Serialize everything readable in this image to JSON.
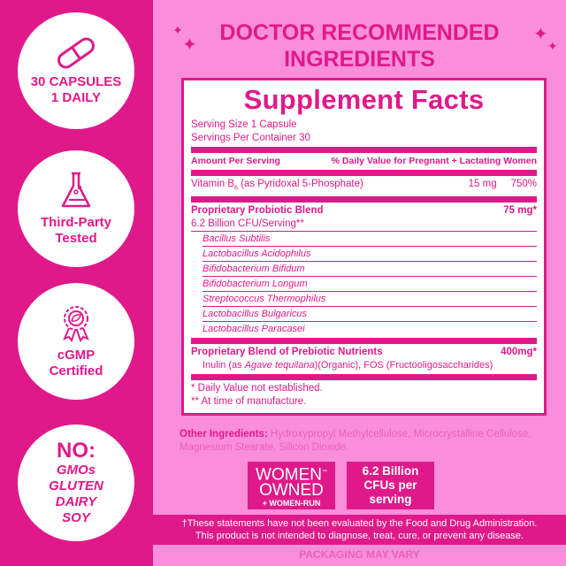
{
  "colors": {
    "primary": "#e0198a",
    "background": "#fb8edb"
  },
  "badges_left": [
    {
      "icon": "capsule-icon",
      "lines": [
        "30 CAPSULES",
        "1 DAILY"
      ]
    },
    {
      "icon": "flask-icon",
      "lines": [
        "Third-Party",
        "Tested"
      ]
    },
    {
      "icon": "award-leaf-icon",
      "lines": [
        "cGMP",
        "Certified"
      ]
    },
    {
      "title": "NO:",
      "lines": [
        "GMOs",
        "GLUTEN",
        "DAIRY",
        "SOY"
      ]
    }
  ],
  "headline": [
    "DOCTOR RECOMMENDED",
    "INGREDIENTS"
  ],
  "facts": {
    "title": "Supplement Facts",
    "serving_size": "Serving Size 1 Capsule",
    "servings_per_container": "Servings Per Container 30",
    "col_amount": "Amount Per Serving",
    "col_dv": "% Daily Value for Pregnant + Lactating Women",
    "vitamin": {
      "name": "Vitamin B",
      "sub": "6",
      "detail": " (as Pyridoxal 5-Phosphate)",
      "amount": "15 mg",
      "dv": "750%"
    },
    "probiotic": {
      "name": "Proprietary Probiotic Blend",
      "amount": "75 mg*",
      "cfu": "6.2 Billion CFU/Serving**",
      "strains": [
        "Bacillus Subtilis",
        "Lactobacillus Acidophilus",
        "Bifidobacterium Bifidum",
        "Bifidobacterium Longum",
        "Streptococcus Thermophilus",
        "Lactobacillus Bulgaricus",
        "Lactobacillus Paracasei"
      ]
    },
    "prebiotic": {
      "name": "Proprietary Blend of Prebiotic Nutrients",
      "amount": "400mg*",
      "detail_a": "Inulin (as ",
      "detail_italic": "Agave tequilana",
      "detail_b": ")(Organic), FOS (Fructooligosaccharides)"
    },
    "footnote1": "* Daily Value not established.",
    "footnote2": "** At time of manufacture."
  },
  "other_ingredients": {
    "label": "Other Ingredients:",
    "text": " Hydroxypropyl Methylcellulose, Microcrystalline Cellulose, Magnesium Stearate, Silicon Dioxide."
  },
  "women_badge": {
    "line1": "WOMEN",
    "tm": "™",
    "line2": "OWNED",
    "line3": "+ WOMEN-RUN"
  },
  "cfu_badge": [
    "6.2 Billion",
    "CFUs per",
    "serving"
  ],
  "disclaimer": [
    "†These statements have not been evaluated by the Food and Drug Administration.",
    "This product is not intended to diagnose, treat, cure, or prevent any disease."
  ],
  "packaging": "PACKAGING MAY VARY"
}
